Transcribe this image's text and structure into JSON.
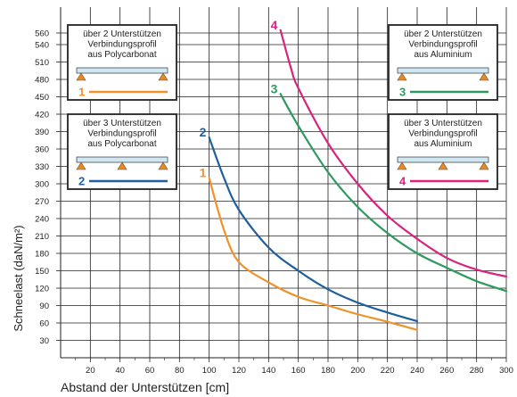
{
  "chart_data": {
    "type": "line",
    "xlabel": "Abstand der Unterstützen  [cm]",
    "ylabel": "Schneelast  (daN/m²)",
    "xlim": [
      0,
      300
    ],
    "ylim": [
      0,
      570
    ],
    "x_ticks": [
      20,
      40,
      60,
      80,
      100,
      120,
      140,
      160,
      180,
      200,
      220,
      240,
      260,
      280,
      300
    ],
    "y_ticks": [
      30,
      60,
      90,
      120,
      150,
      180,
      210,
      240,
      270,
      300,
      330,
      360,
      390,
      420,
      450,
      480,
      510,
      540,
      560
    ],
    "grid": true,
    "series": [
      {
        "name": "1",
        "color": "#f0922b",
        "x": [
          100,
          110,
          120,
          140,
          160,
          180,
          200,
          220,
          240
        ],
        "y": [
          310,
          220,
          165,
          130,
          105,
          90,
          75,
          62,
          48
        ]
      },
      {
        "name": "2",
        "color": "#1f5f9e",
        "x": [
          100,
          110,
          120,
          140,
          160,
          180,
          200,
          220,
          240
        ],
        "y": [
          380,
          310,
          255,
          190,
          150,
          118,
          95,
          78,
          63
        ]
      },
      {
        "name": "3",
        "color": "#2e9a5e",
        "x": [
          148,
          160,
          180,
          200,
          220,
          240,
          260,
          280,
          300
        ],
        "y": [
          455,
          400,
          320,
          260,
          215,
          180,
          155,
          132,
          115
        ]
      },
      {
        "name": "4",
        "color": "#d9237f",
        "x": [
          148,
          155,
          160,
          180,
          200,
          220,
          240,
          260,
          280,
          300
        ],
        "y": [
          565,
          500,
          465,
          370,
          300,
          245,
          205,
          172,
          152,
          140
        ]
      }
    ],
    "legend_boxes": [
      {
        "series": "1",
        "lines": [
          "über 2 Unterstützen",
          "Verbindungsprofil",
          "aus Polycarbonat"
        ],
        "supports": 2,
        "color": "#f0922b",
        "placement": "top-left"
      },
      {
        "series": "2",
        "lines": [
          "über 3 Unterstützen",
          "Verbindungsprofil",
          "aus Polycarbonat"
        ],
        "supports": 3,
        "color": "#1f5f9e",
        "placement": "middle-left"
      },
      {
        "series": "3",
        "lines": [
          "über 2 Unterstützen",
          "Verbindungsprofil",
          "aus Aluminium"
        ],
        "supports": 2,
        "color": "#2e9a5e",
        "placement": "top-right"
      },
      {
        "series": "4",
        "lines": [
          "über 3 Unterstützen",
          "Verbindungsprofil",
          "aus Aluminium"
        ],
        "supports": 3,
        "color": "#d9237f",
        "placement": "middle-right"
      }
    ]
  }
}
